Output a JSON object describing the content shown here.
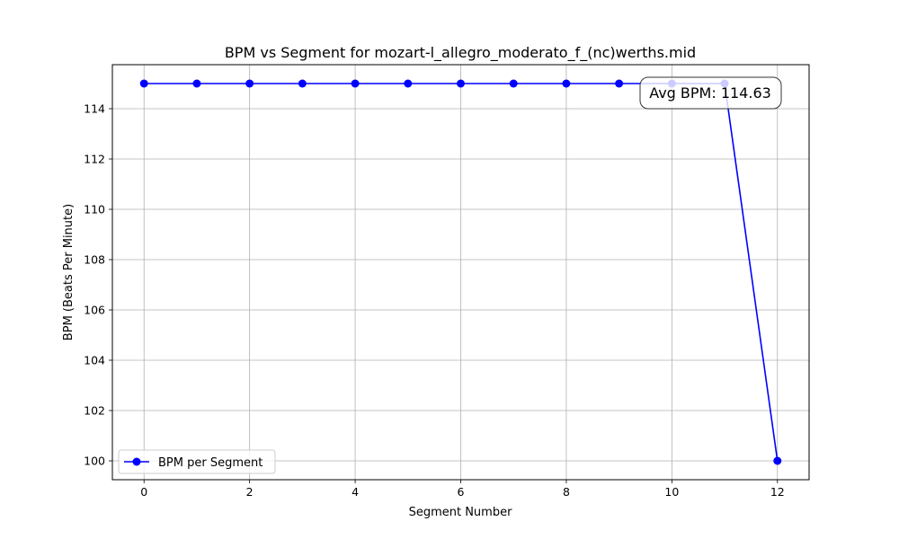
{
  "chart_data": {
    "type": "line",
    "title": "BPM vs Segment for mozart-l_allegro_moderato_f_(nc)werths.mid",
    "xlabel": "Segment Number",
    "ylabel": "BPM (Beats Per Minute)",
    "x": [
      0,
      1,
      2,
      3,
      4,
      5,
      6,
      7,
      8,
      9,
      10,
      11,
      12
    ],
    "series": [
      {
        "name": "BPM per Segment",
        "values": [
          115,
          115,
          115,
          115,
          115,
          115,
          115,
          115,
          115,
          115,
          115,
          115,
          100
        ],
        "color": "#0000ff"
      }
    ],
    "xlim": [
      -0.6,
      12.6
    ],
    "ylim": [
      99.25,
      115.75
    ],
    "xticks": [
      0,
      2,
      4,
      6,
      8,
      10,
      12
    ],
    "yticks": [
      100,
      102,
      104,
      106,
      108,
      110,
      112,
      114
    ],
    "grid": true,
    "legend": "lower-left",
    "annotation": {
      "text": "Avg BPM: 114.63",
      "position": "top-right"
    }
  }
}
